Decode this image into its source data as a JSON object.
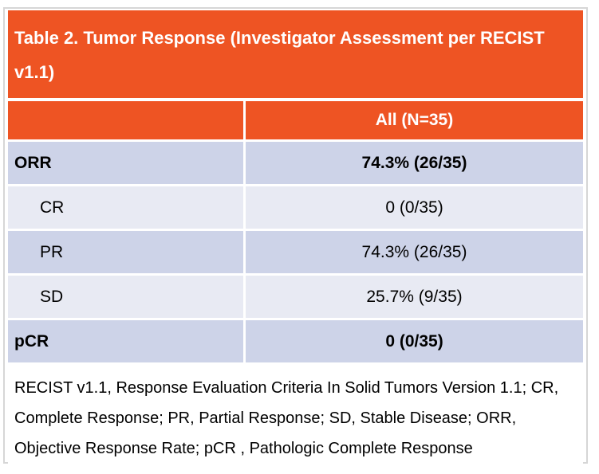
{
  "table": {
    "title": "Table 2. Tumor Response (Investigator Assessment per RECIST v1.1)",
    "columns": {
      "label": "",
      "all": "All (N=35)"
    },
    "rows": [
      {
        "label": "ORR",
        "value": "74.3% (26/35)"
      },
      {
        "label": "CR",
        "value": "0 (0/35)"
      },
      {
        "label": "PR",
        "value": "74.3% (26/35)"
      },
      {
        "label": "SD",
        "value": "25.7% (9/35)"
      },
      {
        "label": "pCR",
        "value": "0 (0/35)"
      }
    ],
    "footnote": "RECIST v1.1, Response Evaluation Criteria In Solid Tumors Version 1.1; CR, Complete Response; PR, Partial Response; SD, Stable Disease; ORR, Objective Response Rate; pCR , Pathologic Complete Response"
  },
  "colors": {
    "header_orange": "#ee5423",
    "row_dark": "#cdd3e8",
    "row_light": "#e8eaf3",
    "border_gray": "#d6d6d6",
    "header_text": "#ffffff",
    "body_text": "#000000"
  }
}
